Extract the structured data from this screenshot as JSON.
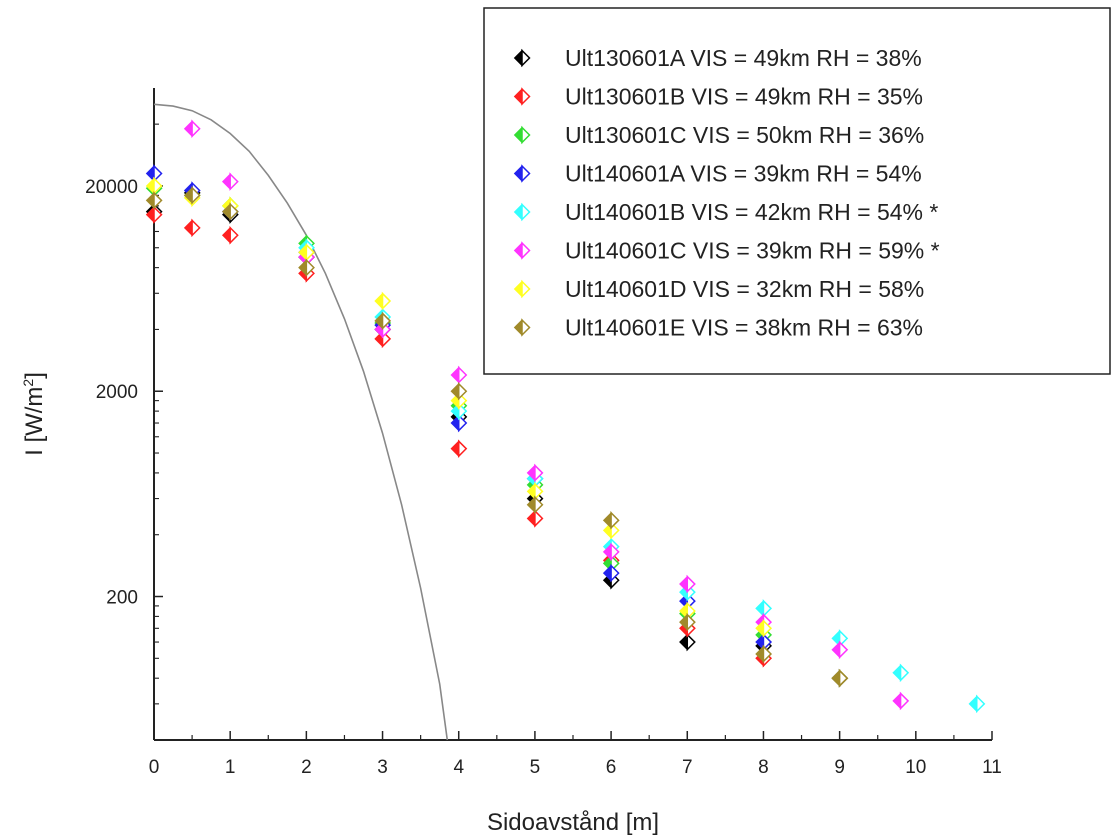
{
  "chart_data": {
    "type": "scatter",
    "title": "",
    "xlabel": "Sidoavstånd [m]",
    "ylabel": "I [W/m2]",
    "ylabel_base": "I [W/m",
    "ylabel_sup": "2",
    "ylabel_close": "]",
    "xlim": [
      0,
      11
    ],
    "ylim": [
      40,
      60000
    ],
    "yscale": "log",
    "xticks": [
      0,
      1,
      2,
      3,
      4,
      5,
      6,
      7,
      8,
      9,
      10,
      11
    ],
    "xtick_labels": [
      "0",
      "1",
      "2",
      "3",
      "4",
      "5",
      "6",
      "7",
      "8",
      "9",
      "10",
      "11"
    ],
    "yticks": [
      200,
      2000,
      20000
    ],
    "ytick_labels": [
      "200",
      "2000",
      "20000"
    ],
    "grid": false,
    "legend_position": "top-right",
    "curve": {
      "description": "reference curve",
      "color": "#888888",
      "x": [
        0,
        0.25,
        0.5,
        0.75,
        1.0,
        1.25,
        1.5,
        1.75,
        2.0,
        2.25,
        2.5,
        2.75,
        3.0,
        3.25,
        3.5,
        3.75,
        3.85
      ],
      "y": [
        50000,
        49000,
        46500,
        42000,
        36000,
        29500,
        22500,
        16500,
        11500,
        7500,
        4500,
        2500,
        1250,
        560,
        220,
        75,
        40
      ]
    },
    "series": [
      {
        "name": "Ult130601A VIS = 49km RH = 38%",
        "color": "#000000",
        "x": [
          0,
          0.5,
          1,
          2,
          3,
          4,
          5,
          6,
          7,
          8,
          9
        ],
        "y": [
          15000,
          18500,
          14500,
          9000,
          4000,
          1500,
          600,
          240,
          120,
          115,
          80
        ]
      },
      {
        "name": "Ult130601B VIS = 49km RH = 35%",
        "color": "#ff2020",
        "x": [
          0,
          0.5,
          1,
          2,
          3,
          4,
          5,
          6,
          7,
          8,
          9
        ],
        "y": [
          14500,
          12500,
          11500,
          7500,
          3600,
          1050,
          480,
          300,
          140,
          100,
          80
        ]
      },
      {
        "name": "Ult130601C VIS = 50km RH = 36%",
        "color": "#33dd33",
        "x": [
          0,
          0.5,
          1,
          2,
          3,
          4,
          5,
          6,
          7,
          8,
          9
        ],
        "y": [
          19500,
          18000,
          16000,
          10500,
          4300,
          1700,
          700,
          290,
          165,
          130,
          80
        ]
      },
      {
        "name": "Ult140601A VIS = 39km RH = 54%",
        "color": "#2222ee",
        "x": [
          0,
          0.5,
          1,
          2,
          3,
          4,
          5,
          6,
          7,
          8,
          9
        ],
        "y": [
          23000,
          19000,
          15000,
          9500,
          4200,
          1400,
          750,
          260,
          190,
          120,
          80
        ]
      },
      {
        "name": "Ult140601B VIS = 42km RH = 54% *",
        "color": "#33ffff",
        "x": [
          2,
          3,
          4,
          5,
          6,
          7,
          8,
          9,
          9.8,
          10.8
        ],
        "y": [
          10000,
          4600,
          1600,
          750,
          350,
          210,
          175,
          125,
          85,
          60
        ]
      },
      {
        "name": "Ult140601C VIS = 39km RH = 59% *",
        "color": "#ff33ff",
        "x": [
          0.5,
          1,
          2,
          3,
          4,
          5,
          6,
          7,
          8,
          9,
          9.8
        ],
        "y": [
          38000,
          21000,
          9000,
          4000,
          2400,
          800,
          330,
          230,
          150,
          110,
          62
        ]
      },
      {
        "name": "Ult140601D VIS = 32km RH = 58%",
        "color": "#ffff22",
        "x": [
          0,
          0.5,
          1,
          2,
          3,
          4,
          5,
          6,
          7,
          8,
          9
        ],
        "y": [
          20000,
          17500,
          16000,
          9500,
          5500,
          1800,
          650,
          420,
          170,
          140,
          80
        ]
      },
      {
        "name": "Ult140601E VIS = 38km RH = 63%",
        "color": "#a08a2a",
        "x": [
          0,
          0.5,
          1,
          2,
          3,
          4,
          5,
          6,
          7,
          8,
          9
        ],
        "y": [
          17000,
          18000,
          15000,
          8000,
          4400,
          2000,
          560,
          470,
          150,
          105,
          80
        ]
      }
    ]
  }
}
